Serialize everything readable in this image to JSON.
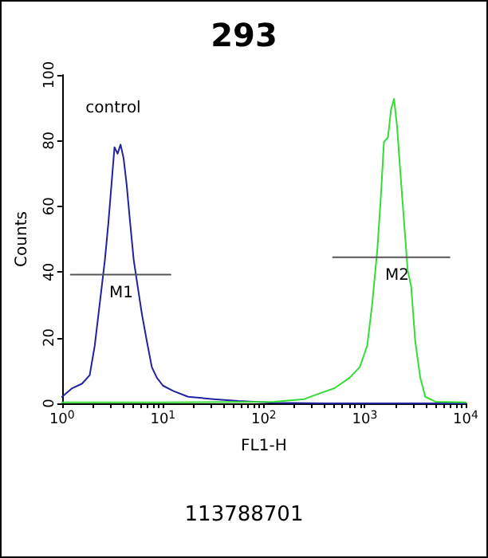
{
  "chart_data": {
    "type": "line",
    "title": "293",
    "xlabel": "FL1-H",
    "ylabel": "Counts",
    "log": "x",
    "marker": "none",
    "line_style": "solid",
    "xlim": [
      1,
      10000
    ],
    "xticks": [
      {
        "value": 1,
        "label": "10$^{0}$"
      },
      {
        "value": 2,
        "label": null
      },
      {
        "value": 3,
        "label": null
      },
      {
        "value": 4,
        "label": null
      },
      {
        "value": 5,
        "label": null
      },
      {
        "value": 6,
        "label": null
      },
      {
        "value": 7,
        "label": null
      },
      {
        "value": 8,
        "label": null
      },
      {
        "value": 9,
        "label": null
      },
      {
        "value": 10,
        "label": "10$^{1}$"
      },
      {
        "value": 20,
        "label": null
      },
      {
        "value": 30,
        "label": null
      },
      {
        "value": 40,
        "label": null
      },
      {
        "value": 50,
        "label": null
      },
      {
        "value": 60,
        "label": null
      },
      {
        "value": 70,
        "label": null
      },
      {
        "value": 80,
        "label": null
      },
      {
        "value": 90,
        "label": null
      },
      {
        "value": 100,
        "label": "10$^{2}$"
      },
      {
        "value": 200,
        "label": null
      },
      {
        "value": 300,
        "label": null
      },
      {
        "value": 400,
        "label": null
      },
      {
        "value": 500,
        "label": null
      },
      {
        "value": 600,
        "label": null
      },
      {
        "value": 700,
        "label": null
      },
      {
        "value": 800,
        "label": null
      },
      {
        "value": 900,
        "label": null
      },
      {
        "value": 1000,
        "label": "10$^{3}$"
      },
      {
        "value": 2000,
        "label": null
      },
      {
        "value": 3000,
        "label": null
      },
      {
        "value": 4000,
        "label": null
      },
      {
        "value": 5000,
        "label": null
      },
      {
        "value": 6000,
        "label": null
      },
      {
        "value": 7000,
        "label": null
      },
      {
        "value": 8000,
        "label": null
      },
      {
        "value": 9000,
        "label": null
      },
      {
        "value": 10000,
        "label": "10$^{4}$"
      }
    ],
    "ylim": [
      0,
      100
    ],
    "yticks": [
      0,
      20,
      40,
      60,
      80,
      100
    ],
    "series": [
      {
        "color": "#22229e",
        "x": [
          1,
          1.26,
          1.58,
          1.88,
          2.11,
          2.37,
          2.66,
          2.88,
          3.09,
          3.31,
          3.55,
          3.8,
          4.07,
          4.37,
          4.73,
          5.13,
          5.62,
          6.17,
          6.92,
          7.76,
          8.71,
          10,
          12.6,
          17.8,
          31.6,
          56,
          126,
          398,
          1259,
          10000
        ],
        "values": [
          2,
          4.6,
          6,
          8.6,
          17.6,
          30.7,
          43.7,
          55,
          66.6,
          78,
          76,
          78.8,
          74.7,
          66.6,
          55,
          43.7,
          35.6,
          27.4,
          19,
          11,
          7.8,
          5.4,
          3.8,
          2,
          1.3,
          0.7,
          0.2,
          0,
          0,
          0
        ]
      },
      {
        "color": "#33dd33",
        "x": [
          1,
          10,
          126,
          251,
          355,
          501,
          708,
          891,
          1059,
          1189,
          1334,
          1445,
          1549,
          1698,
          1820,
          1950,
          2089,
          2239,
          2455,
          2661,
          2884,
          3162,
          3548,
          3981,
          5012,
          10000
        ],
        "values": [
          0.3,
          0.3,
          0.5,
          1.3,
          3,
          4.6,
          7.8,
          11,
          17.6,
          30.7,
          47,
          63,
          79.6,
          81,
          89.4,
          92.7,
          84.5,
          71.5,
          55,
          40.5,
          35.6,
          19,
          7.8,
          2,
          0.5,
          0.3
        ]
      },
      {
        "color": "#555555",
        "x": [
          1.22,
          11.9
        ],
        "values": [
          39.2,
          39.2
        ]
      },
      {
        "color": "#555555",
        "x": [
          484,
          6918
        ],
        "values": [
          44.5,
          44.5
        ]
      }
    ],
    "annotations": [
      "control",
      "M1",
      "M2",
      "113788701"
    ]
  }
}
